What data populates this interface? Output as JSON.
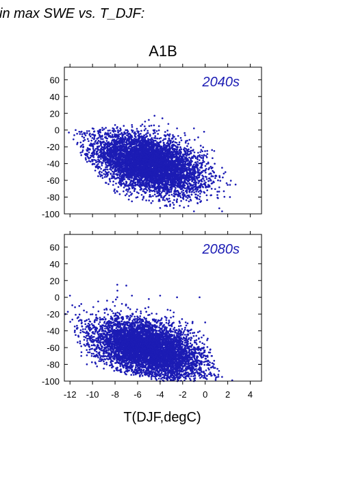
{
  "header_text": "in max SWE vs. T_DJF:",
  "scenario_title": "A1B",
  "colors": {
    "points": "#1c1cb4",
    "frame": "#000000",
    "period_label": "#1c1cb4"
  },
  "chart_data": [
    {
      "type": "scatter",
      "label": "2040s",
      "xlim": [
        -12.5,
        5
      ],
      "ylim": [
        -100,
        75
      ],
      "xticks": [
        -12,
        -10,
        -8,
        -6,
        -4,
        -2,
        0,
        2,
        4
      ],
      "yticks": [
        -100,
        -80,
        -60,
        -40,
        -20,
        0,
        20,
        40,
        60
      ],
      "xtick_labels_shown": false,
      "grid": false,
      "point_cloud": {
        "approx_points": 6000,
        "x_range": [
          -12.2,
          2.8
        ],
        "y_range": [
          -98,
          18
        ],
        "center": [
          -5,
          -40
        ],
        "trend": "negative slope: colder winters have near-zero change, warmer winters have large losses",
        "edge_samples": [
          [
            -12.1,
            -3
          ],
          [
            -11.5,
            0
          ],
          [
            -10,
            2
          ],
          [
            -8,
            6
          ],
          [
            -6.5,
            6
          ],
          [
            -5,
            12
          ],
          [
            -4.5,
            17
          ],
          [
            -3.8,
            14
          ],
          [
            -2.5,
            2
          ],
          [
            -1.0,
            2
          ],
          [
            -0.1,
            -2
          ],
          [
            0.8,
            -25
          ],
          [
            1.5,
            -45
          ],
          [
            2.7,
            -65
          ],
          [
            2.2,
            -80
          ],
          [
            1.5,
            -97
          ],
          [
            -1,
            -97
          ],
          [
            -4,
            -93
          ],
          [
            -6.5,
            -85
          ],
          [
            -8,
            -75
          ],
          [
            -9.5,
            -55
          ],
          [
            -11,
            -30
          ]
        ]
      }
    },
    {
      "type": "scatter",
      "label": "2080s",
      "xlim": [
        -12.5,
        5
      ],
      "ylim": [
        -100,
        75
      ],
      "xticks": [
        -12,
        -10,
        -8,
        -6,
        -4,
        -2,
        0,
        2,
        4
      ],
      "yticks": [
        -100,
        -80,
        -60,
        -40,
        -20,
        0,
        20,
        40,
        60
      ],
      "xtick_labels_shown": true,
      "xlabel": "T(DJF,degC)",
      "grid": false,
      "point_cloud": {
        "approx_points": 6000,
        "x_range": [
          -12.5,
          2.5
        ],
        "y_range": [
          -100,
          16
        ],
        "center": [
          -5,
          -62
        ],
        "trend": "negative slope: warmer winters show losses approaching -100",
        "edge_samples": [
          [
            -12.4,
            -20
          ],
          [
            -12,
            2
          ],
          [
            -11,
            -8
          ],
          [
            -9.5,
            -5
          ],
          [
            -7.8,
            15
          ],
          [
            -7,
            14
          ],
          [
            -6.5,
            2
          ],
          [
            -5,
            -2
          ],
          [
            -4,
            2
          ],
          [
            -2.5,
            0
          ],
          [
            -0.5,
            0
          ],
          [
            0,
            -30
          ],
          [
            0.6,
            -70
          ],
          [
            1.5,
            -95
          ],
          [
            2.4,
            -99
          ],
          [
            -1,
            -100
          ],
          [
            -4,
            -100
          ],
          [
            -7,
            -92
          ],
          [
            -9,
            -85
          ],
          [
            -10.5,
            -80
          ],
          [
            -11,
            -70
          ],
          [
            -11.5,
            -45
          ]
        ]
      }
    }
  ]
}
